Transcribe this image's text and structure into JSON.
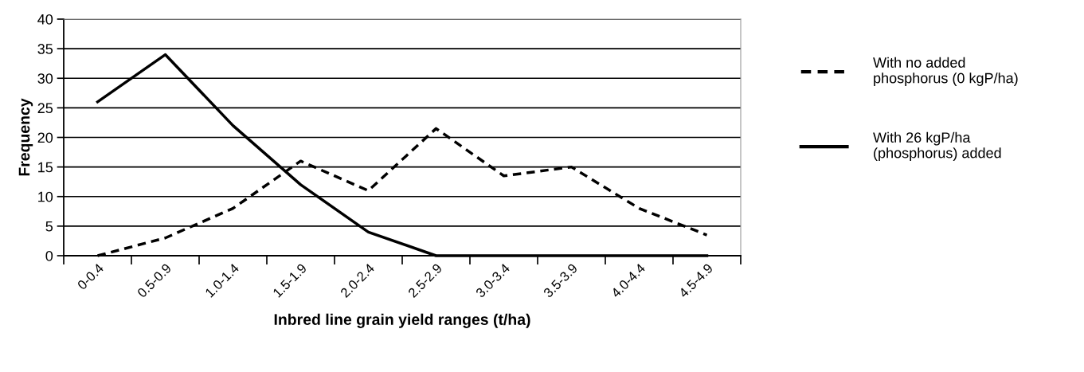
{
  "chart_data": {
    "type": "line",
    "xlabel": "Inbred line grain yield ranges (t/ha)",
    "ylabel": "Frequency",
    "categories": [
      "0-0.4",
      "0.5-0.9",
      "1.0-1.4",
      "1.5-1.9",
      "2.0-2.4",
      "2.5-2.9",
      "3.0-3.4",
      "3.5-3.9",
      "4.0-4.4",
      "4.5-4.9"
    ],
    "series": [
      {
        "name": "With no added phosphorus (0 kgP/ha)",
        "color": "#000000",
        "line_style": "dashed",
        "values": [
          0,
          3,
          8,
          16,
          11,
          21.5,
          13.5,
          15,
          8,
          3.5
        ]
      },
      {
        "name": "With 26 kgP/ha (phosphorus) added",
        "color": "#000000",
        "line_style": "solid",
        "values": [
          26,
          34,
          22,
          12,
          4,
          0,
          0,
          0,
          0,
          0
        ]
      }
    ],
    "ylim": [
      0,
      40
    ],
    "yticks": [
      0,
      5,
      10,
      15,
      20,
      25,
      30,
      35,
      40
    ],
    "grid": "y",
    "legend": "right",
    "marker": "none"
  }
}
